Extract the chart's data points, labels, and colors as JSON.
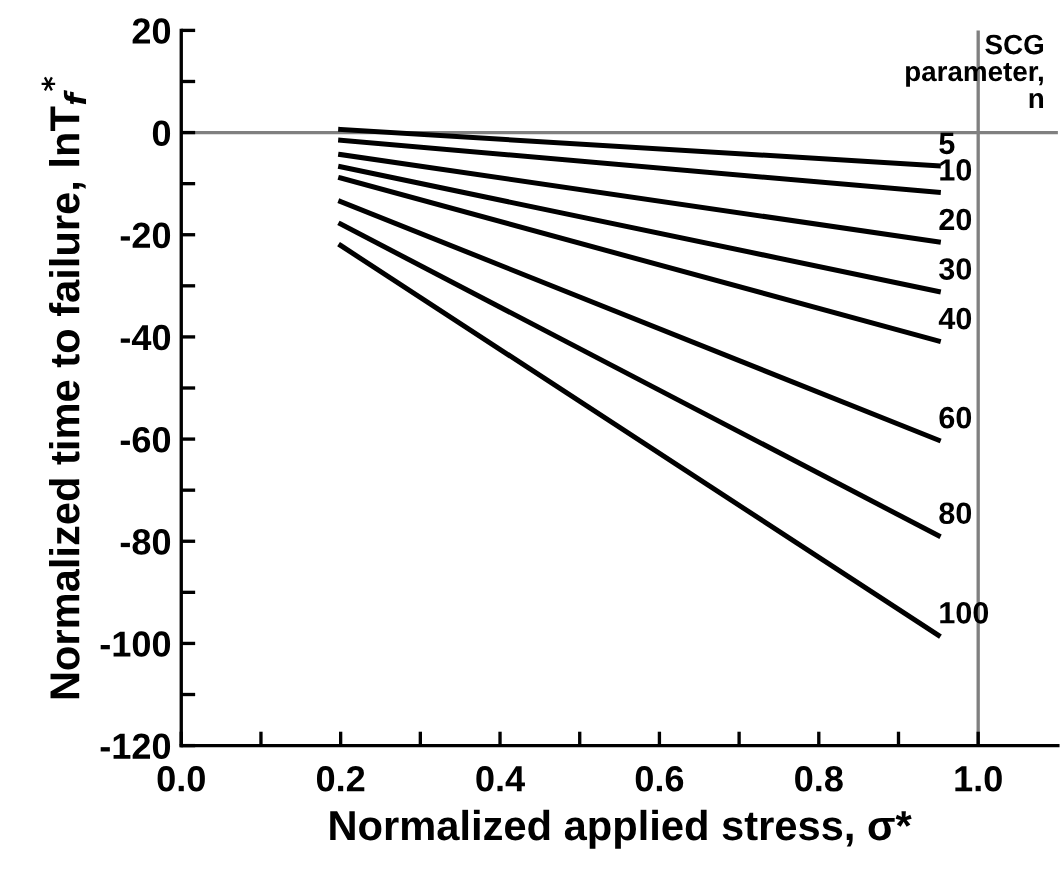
{
  "chart_data": {
    "type": "line",
    "xlabel": "Normalized applied stress, σ*",
    "ylabel": "Normalized time to failure, lnT$_{f}$$^{*}$",
    "annotations": [
      "SCG\nparameter,\nn"
    ],
    "x": [
      0.2,
      0.95
    ],
    "series": [
      {
        "name": "5",
        "color": "#000000",
        "values": [
          0.6,
          -6.5
        ]
      },
      {
        "name": "10",
        "color": "#000000",
        "values": [
          -1.5,
          -11.7
        ]
      },
      {
        "name": "20",
        "color": "#000000",
        "values": [
          -4.3,
          -21.4
        ]
      },
      {
        "name": "30",
        "color": "#000000",
        "values": [
          -6.7,
          -31.1
        ]
      },
      {
        "name": "40",
        "color": "#000000",
        "values": [
          -8.9,
          -40.8
        ]
      },
      {
        "name": "60",
        "color": "#000000",
        "values": [
          -13.5,
          -60.2
        ]
      },
      {
        "name": "80",
        "color": "#000000",
        "values": [
          -17.9,
          -78.9
        ]
      },
      {
        "name": "100",
        "color": "#000000",
        "values": [
          -22.1,
          -98.4
        ]
      }
    ],
    "xlim": [
      0,
      1.1
    ],
    "xticks": [
      {
        "value": 0,
        "label": "0.0"
      },
      {
        "value": 0.1,
        "label": null
      },
      {
        "value": 0.2,
        "label": "0.2"
      },
      {
        "value": 0.3,
        "label": null
      },
      {
        "value": 0.4,
        "label": "0.4"
      },
      {
        "value": 0.5,
        "label": null
      },
      {
        "value": 0.6,
        "label": "0.6"
      },
      {
        "value": 0.7,
        "label": null
      },
      {
        "value": 0.8,
        "label": "0.8"
      },
      {
        "value": 0.9,
        "label": null
      },
      {
        "value": 1.0,
        "label": "1.0"
      }
    ],
    "ylim": [
      -120,
      20
    ],
    "yticks": [
      -120,
      {
        "value": -110,
        "label": null
      },
      -100,
      {
        "value": -90,
        "label": null
      },
      -80,
      {
        "value": -70,
        "label": null
      },
      -60,
      {
        "value": -50,
        "label": null
      },
      -40,
      {
        "value": -30,
        "label": null
      },
      -20,
      {
        "value": -10,
        "label": null
      },
      0,
      {
        "value": 10,
        "label": null
      },
      20
    ],
    "ref_lines": [
      {
        "axis": "y",
        "value": 0,
        "color": "#808080"
      },
      {
        "axis": "x",
        "value": 1.0,
        "color": "#808080"
      }
    ],
    "grid": false,
    "legend": false,
    "marker": "none",
    "line_style": "solid"
  }
}
